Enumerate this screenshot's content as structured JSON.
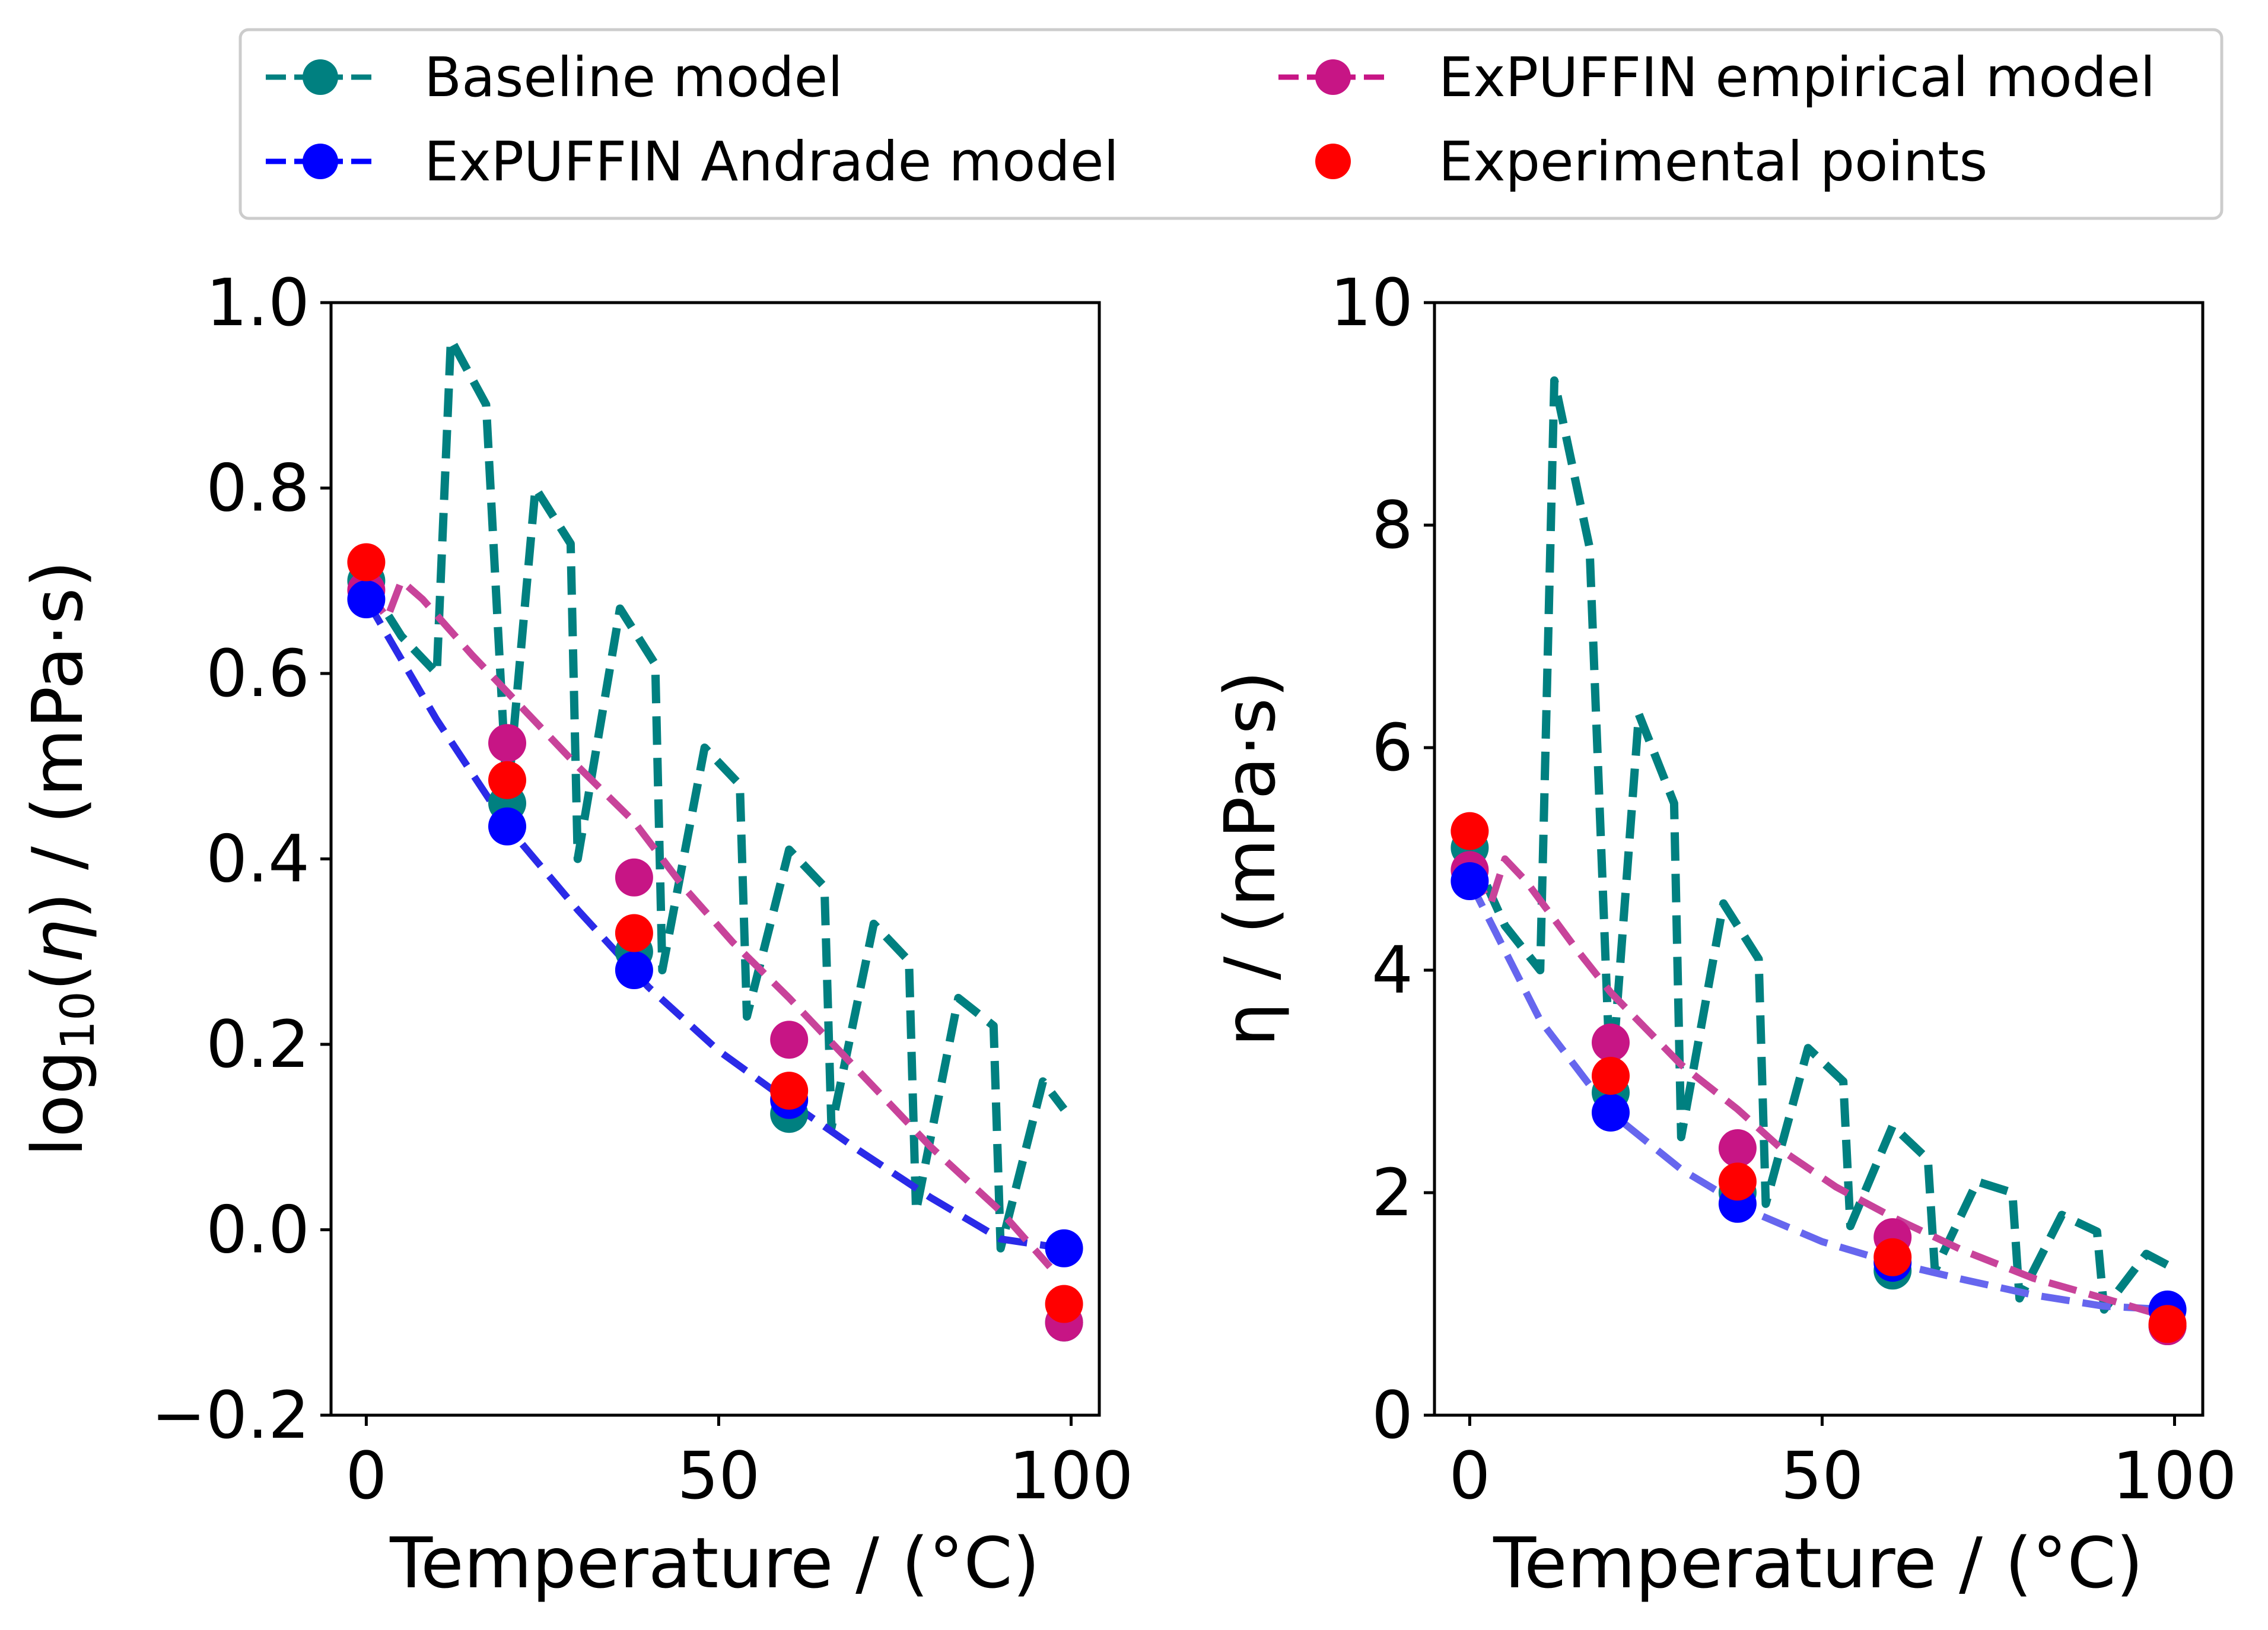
{
  "colors": {
    "baseline": "#008080",
    "andrade": "#0000ff",
    "empirical": "#c71585",
    "experimental": "#ff0000",
    "andrade_line_left": "#2a2ae8",
    "andrade_line_right": "#6666ee",
    "empirical_line": "#c8439a"
  },
  "legend": {
    "items": [
      {
        "label": "Baseline model",
        "key": "baseline"
      },
      {
        "label": "ExPUFFIN empirical model",
        "key": "empirical"
      },
      {
        "label": "ExPUFFIN Andrade model",
        "key": "andrade"
      },
      {
        "label": "Experimental points",
        "key": "experimental"
      }
    ]
  },
  "chart_data": [
    {
      "type": "line",
      "panel": "left",
      "xlabel": "Temperature / (°C)",
      "ylabel_parts": {
        "func": "log",
        "sub": "10",
        "mid": "(",
        "var": "η",
        "end": ") / (mPa·s)"
      },
      "xlim": [
        -5,
        104
      ],
      "ylim": [
        -0.2,
        1.0
      ],
      "xticks": [
        0,
        50,
        100
      ],
      "yticks": [
        -0.2,
        0.0,
        0.2,
        0.4,
        0.6,
        0.8,
        1.0
      ],
      "ytick_labels": [
        "−0.2",
        "0.0",
        "0.2",
        "0.4",
        "0.6",
        "0.8",
        "1.0"
      ],
      "series": [
        {
          "name": "Baseline model",
          "key": "baseline",
          "style": "line",
          "x": [
            0,
            5,
            10,
            12,
            17,
            20,
            24,
            29,
            30,
            36,
            41,
            42,
            48,
            53,
            54,
            60,
            65,
            66,
            72,
            77,
            78,
            84,
            89,
            90,
            96,
            99
          ],
          "y": [
            0.7,
            0.64,
            0.6,
            0.96,
            0.89,
            0.46,
            0.8,
            0.74,
            0.4,
            0.67,
            0.61,
            0.28,
            0.52,
            0.48,
            0.23,
            0.41,
            0.37,
            0.11,
            0.33,
            0.29,
            0.02,
            0.25,
            0.22,
            -0.02,
            0.16,
            0.13
          ]
        },
        {
          "name": "ExPUFFIN Andrade model",
          "key": "andrade",
          "style": "line",
          "x": [
            0,
            10,
            20,
            30,
            40,
            50,
            60,
            70,
            80,
            90,
            99
          ],
          "y": [
            0.68,
            0.55,
            0.435,
            0.345,
            0.262,
            0.193,
            0.138,
            0.085,
            0.035,
            -0.01,
            -0.02
          ]
        },
        {
          "name": "ExPUFFIN empirical model",
          "key": "empirical",
          "style": "line",
          "x": [
            0,
            3,
            5,
            8,
            15,
            20,
            30,
            38,
            45,
            52,
            60,
            70,
            80,
            90,
            97
          ],
          "y": [
            0.69,
            0.66,
            0.7,
            0.68,
            0.62,
            0.58,
            0.5,
            0.44,
            0.37,
            0.31,
            0.25,
            0.17,
            0.09,
            0.02,
            -0.04
          ]
        },
        {
          "name": "Baseline model points",
          "key": "baseline",
          "style": "points",
          "x": [
            0,
            20,
            38,
            60,
            99
          ],
          "y": [
            0.7,
            0.46,
            0.3,
            0.125,
            -0.1
          ]
        },
        {
          "name": "ExPUFFIN empirical model points",
          "key": "empirical",
          "style": "points",
          "x": [
            0,
            20,
            38,
            60,
            99
          ],
          "y": [
            0.69,
            0.525,
            0.38,
            0.205,
            -0.1
          ]
        },
        {
          "name": "ExPUFFIN Andrade model points",
          "key": "andrade",
          "style": "points",
          "x": [
            0,
            20,
            38,
            60,
            99
          ],
          "y": [
            0.68,
            0.435,
            0.28,
            0.14,
            -0.02
          ]
        },
        {
          "name": "Experimental points",
          "key": "experimental",
          "style": "points",
          "x": [
            0,
            20,
            38,
            60,
            99
          ],
          "y": [
            0.72,
            0.485,
            0.32,
            0.15,
            -0.08
          ]
        }
      ]
    },
    {
      "type": "line",
      "panel": "right",
      "xlabel": "Temperature / (°C)",
      "ylabel": "η / (mPa·s)",
      "xlim": [
        -5,
        104
      ],
      "ylim": [
        0,
        10
      ],
      "xticks": [
        0,
        50,
        100
      ],
      "yticks": [
        0,
        2,
        4,
        6,
        8,
        10
      ],
      "ytick_labels": [
        "0",
        "2",
        "4",
        "6",
        "8",
        "10"
      ],
      "series": [
        {
          "name": "Baseline model",
          "key": "baseline",
          "style": "line",
          "x": [
            0,
            5,
            10,
            12,
            17,
            20,
            24,
            29,
            30,
            36,
            41,
            42,
            48,
            53,
            54,
            60,
            65,
            66,
            72,
            77,
            78,
            84,
            89,
            90,
            96,
            99
          ],
          "y": [
            5.1,
            4.4,
            4.0,
            9.3,
            7.8,
            2.9,
            6.3,
            5.5,
            2.5,
            4.6,
            4.1,
            1.9,
            3.3,
            3.0,
            1.7,
            2.6,
            2.3,
            1.3,
            2.1,
            2.0,
            1.05,
            1.8,
            1.65,
            0.95,
            1.45,
            1.35
          ]
        },
        {
          "name": "ExPUFFIN Andrade model",
          "key": "andrade",
          "style": "line",
          "x": [
            0,
            10,
            20,
            30,
            40,
            50,
            60,
            70,
            80,
            90,
            99
          ],
          "y": [
            4.8,
            3.55,
            2.72,
            2.21,
            1.83,
            1.56,
            1.37,
            1.22,
            1.08,
            0.98,
            0.95
          ]
        },
        {
          "name": "ExPUFFIN empirical model",
          "key": "empirical",
          "style": "line",
          "x": [
            0,
            3,
            5,
            8,
            15,
            20,
            30,
            38,
            45,
            52,
            60,
            70,
            80,
            90,
            97
          ],
          "y": [
            4.9,
            4.6,
            5.0,
            4.8,
            4.2,
            3.8,
            3.15,
            2.75,
            2.35,
            2.05,
            1.78,
            1.48,
            1.23,
            1.05,
            0.92
          ]
        },
        {
          "name": "Baseline model points",
          "key": "baseline",
          "style": "points",
          "x": [
            0,
            20,
            38,
            60,
            99
          ],
          "y": [
            5.1,
            2.9,
            2.0,
            1.3,
            0.8
          ]
        },
        {
          "name": "ExPUFFIN empirical model points",
          "key": "empirical",
          "style": "points",
          "x": [
            0,
            20,
            38,
            60,
            99
          ],
          "y": [
            4.9,
            3.35,
            2.4,
            1.6,
            0.8
          ]
        },
        {
          "name": "ExPUFFIN Andrade model points",
          "key": "andrade",
          "style": "points",
          "x": [
            0,
            20,
            38,
            60,
            99
          ],
          "y": [
            4.8,
            2.72,
            1.9,
            1.37,
            0.95
          ]
        },
        {
          "name": "Experimental points",
          "key": "experimental",
          "style": "points",
          "x": [
            0,
            20,
            38,
            60,
            99
          ],
          "y": [
            5.25,
            3.05,
            2.1,
            1.42,
            0.82
          ]
        }
      ]
    }
  ]
}
